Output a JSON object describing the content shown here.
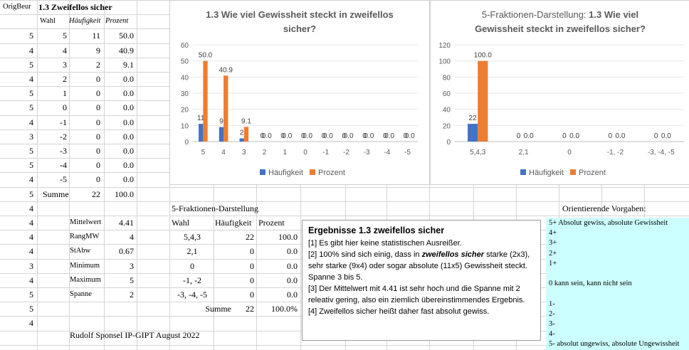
{
  "table1": {
    "header": {
      "origbeur": "OrigBeur",
      "title": "1.3 Zweifellos sicher",
      "wahl": "Wahl",
      "haeufigkeit": "Häufigkeit",
      "prozent": "Prozent"
    },
    "rows": [
      {
        "orig": "5",
        "wahl": "5",
        "h": "11",
        "p": "50.0"
      },
      {
        "orig": "4",
        "wahl": "4",
        "h": "9",
        "p": "40.9"
      },
      {
        "orig": "5",
        "wahl": "3",
        "h": "2",
        "p": "9.1"
      },
      {
        "orig": "4",
        "wahl": "2",
        "h": "0",
        "p": "0.0"
      },
      {
        "orig": "5",
        "wahl": "1",
        "h": "0",
        "p": "0.0"
      },
      {
        "orig": "5",
        "wahl": "0",
        "h": "0",
        "p": "0.0"
      },
      {
        "orig": "4",
        "wahl": "-1",
        "h": "0",
        "p": "0.0"
      },
      {
        "orig": "3",
        "wahl": "-2",
        "h": "0",
        "p": "0.0"
      },
      {
        "orig": "5",
        "wahl": "-3",
        "h": "0",
        "p": "0.0"
      },
      {
        "orig": "5",
        "wahl": "-4",
        "h": "0",
        "p": "0.0"
      },
      {
        "orig": "4",
        "wahl": "-5",
        "h": "0",
        "p": "0.0"
      }
    ],
    "summe_row": {
      "orig": "5",
      "label": "Summe",
      "h": "22",
      "p": "100.0"
    },
    "extra_orig": [
      "4",
      "4",
      "4",
      "4",
      "3",
      "4",
      "5",
      "5",
      "4"
    ]
  },
  "stats": [
    {
      "label": "Mittelwert",
      "value": "4.41"
    },
    {
      "label": "RangMW",
      "value": "4"
    },
    {
      "label": "StAbw",
      "value": "0.67"
    },
    {
      "label": "Minimum",
      "value": "3"
    },
    {
      "label": "Maximum",
      "value": "5"
    },
    {
      "label": "Spanne",
      "value": "2"
    }
  ],
  "footer": "Rudolf Sponsel IP-GIPT August 2022",
  "table2": {
    "title": "5-Fraktionen-Darstellung",
    "headers": {
      "wahl": "Wahl",
      "h": "Häufigkeit",
      "p": "Prozent"
    },
    "rows": [
      {
        "wahl": "5,4,3",
        "h": "22",
        "p": "100.0"
      },
      {
        "wahl": "2,1",
        "h": "0",
        "p": "0.0"
      },
      {
        "wahl": "0",
        "h": "0",
        "p": "0.0"
      },
      {
        "wahl": "-1, -2",
        "h": "0",
        "p": "0.0"
      },
      {
        "wahl": "-3, -4, -5",
        "h": "0",
        "p": "0.0"
      }
    ],
    "summe": {
      "label": "Summe",
      "h": "22",
      "p": "100.0%"
    }
  },
  "ergebnisse": {
    "title": "Ergebnisse 1.3 zweifellos sicher",
    "p1": "[1]  Es gibt hier keine statistischen Ausreißer.",
    "p2a": "[2] 100% sind sich einig, dass in ",
    "p2em": "zweifellos sicher",
    "p2b": " starke (2x3), sehr starke (9x4) oder sogar absolute (11x5) Gewissheit steckt. Spanne 3 bis 5.",
    "p3": "[3] Der Mittelwert mit 4.41 ist sehr hoch und die Spanne mit 2 releativ gering, also ein ziemlich übereinstimmendes Ergebnis.",
    "p4": "[4] Zweifellos sicher heißt daher fast absolut gewiss."
  },
  "vorgaben": {
    "title": "Orientierende Vorgaben:",
    "lines": [
      "5+ Absolut gewiss, absolute Gewissheit",
      "4+",
      "3+",
      "2+",
      "1+",
      "",
      "0  kann sein, kann nicht sein",
      "",
      "1-",
      "2-",
      "3-",
      "4-",
      "5-  absolut ungewiss, absolute Ungewissheit"
    ]
  },
  "chart_data": [
    {
      "type": "bar",
      "title": "1.3 Wie viel Gewissheit steckt in zweifellos sicher?",
      "categories": [
        "5",
        "4",
        "3",
        "2",
        "1",
        "0",
        "-1",
        "-2",
        "-3",
        "-4",
        "-5"
      ],
      "series": [
        {
          "name": "Häufigkeit",
          "color": "#4472c4",
          "values": [
            11,
            9,
            2,
            0,
            0,
            0,
            0,
            0,
            0,
            0,
            0
          ]
        },
        {
          "name": "Prozent",
          "color": "#ed7d31",
          "values": [
            50.0,
            40.9,
            9.1,
            0.0,
            0.0,
            0.0,
            0.0,
            0.0,
            0.0,
            0.0,
            0.0
          ]
        }
      ],
      "ylim": [
        0,
        60
      ],
      "yticks": [
        0,
        10,
        20,
        30,
        40,
        50,
        60
      ],
      "legend": "bottom"
    },
    {
      "type": "bar",
      "title_prefix": "5-Fraktionen-Darstellung: ",
      "title": "1.3 Wie viel Gewissheit steckt in zweifellos sicher?",
      "categories": [
        "5,4,3",
        "2,1",
        "0",
        "-1, -2",
        "-3, -4, -5"
      ],
      "series": [
        {
          "name": "Häufigkeit",
          "color": "#4472c4",
          "values": [
            22,
            0,
            0,
            0,
            0
          ]
        },
        {
          "name": "Prozent",
          "color": "#ed7d31",
          "values": [
            100.0,
            0.0,
            0.0,
            0.0,
            0.0
          ]
        }
      ],
      "ylim": [
        0,
        120
      ],
      "yticks": [
        0,
        20,
        40,
        60,
        80,
        100,
        120
      ],
      "legend": "bottom"
    }
  ]
}
